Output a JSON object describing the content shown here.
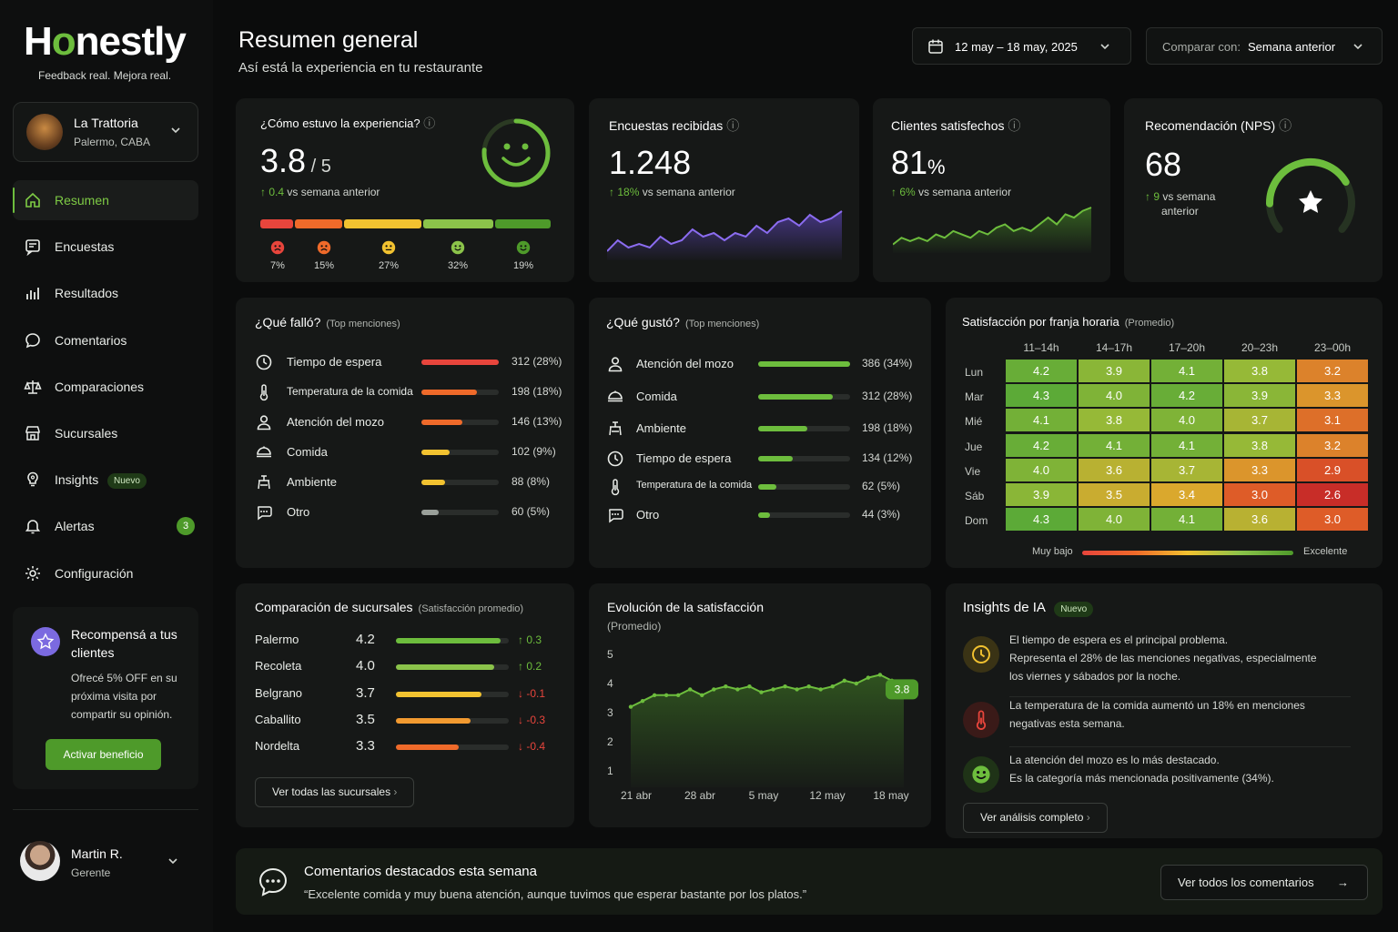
{
  "brand": {
    "name_pre": "H",
    "name_o": "o",
    "name_post": "nestly",
    "tagline": "Feedback real. Mejora real."
  },
  "restaurant": {
    "name": "La Trattoria",
    "location": "Palermo, CABA"
  },
  "nav": [
    {
      "label": "Resumen",
      "icon": "home-icon",
      "active": true
    },
    {
      "label": "Encuestas",
      "icon": "survey-icon"
    },
    {
      "label": "Resultados",
      "icon": "bar-chart-icon"
    },
    {
      "label": "Comentarios",
      "icon": "comment-icon"
    },
    {
      "label": "Comparaciones",
      "icon": "scale-icon"
    },
    {
      "label": "Sucursales",
      "icon": "store-icon"
    },
    {
      "label": "Insights",
      "icon": "bulb-icon",
      "badge": "Nuevo"
    },
    {
      "label": "Alertas",
      "icon": "bell-icon",
      "count": "3"
    },
    {
      "label": "Configuración",
      "icon": "gear-icon"
    }
  ],
  "promo": {
    "title": "Recompensá a tus clientes",
    "desc": "Ofrecé 5% OFF en su próxima visita por compartir su opinión.",
    "button": "Activar beneficio"
  },
  "user": {
    "name": "Martin R.",
    "role": "Gerente"
  },
  "header": {
    "title": "Resumen general",
    "subtitle": "Así está la experiencia en tu restaurante",
    "date_range": "12 may – 18 may, 2025",
    "compare_label": "Comparar con:",
    "compare_value": "Semana anterior"
  },
  "kpi_experience": {
    "title": "¿Cómo estuvo la experiencia?",
    "value": "3.8",
    "scale": "/ 5",
    "delta": "0.4",
    "delta_text": "vs semana anterior",
    "dist": [
      {
        "pct": "7%",
        "color": "#e8453c"
      },
      {
        "pct": "15%",
        "color": "#ef6a2a"
      },
      {
        "pct": "27%",
        "color": "#f2c230"
      },
      {
        "pct": "32%",
        "color": "#8bc34a"
      },
      {
        "pct": "19%",
        "color": "#4e9a2a"
      }
    ]
  },
  "kpi_surveys": {
    "title": "Encuestas recibidas",
    "value": "1.248",
    "delta": "18%",
    "delta_text": "vs semana anterior",
    "spark": [
      4,
      7,
      5,
      6,
      5,
      8,
      6,
      7,
      10,
      8,
      9,
      7,
      9,
      8,
      11,
      9,
      12,
      13,
      11,
      14,
      12,
      13,
      15
    ]
  },
  "kpi_satisfied": {
    "title": "Clientes satisfechos",
    "value": "81",
    "unit": "%",
    "delta": "6%",
    "delta_text": "vs semana anterior",
    "spark": [
      4,
      6,
      5,
      6,
      5,
      7,
      6,
      8,
      7,
      6,
      8,
      7,
      9,
      10,
      8,
      9,
      8,
      10,
      12,
      10,
      13,
      12,
      14,
      15
    ]
  },
  "kpi_nps": {
    "title": "Recomendación (NPS)",
    "value": "68",
    "delta": "9",
    "delta_text_1": "vs semana",
    "delta_text_2": "anterior",
    "level": 0.68
  },
  "failed": {
    "title": "¿Qué falló?",
    "hint": "(Top menciones)",
    "items": [
      {
        "label": "Tiempo de espera",
        "value": "312 (28%)",
        "pct": 1.0,
        "color": "#e8453c",
        "icon": "clock-icon"
      },
      {
        "label": "Temperatura de la comida",
        "value": "198 (18%)",
        "pct": 0.72,
        "color": "#ef6a2a",
        "icon": "thermometer-icon"
      },
      {
        "label": "Atención del mozo",
        "value": "146 (13%)",
        "pct": 0.53,
        "color": "#ef6a2a",
        "icon": "person-icon"
      },
      {
        "label": "Comida",
        "value": "102 (9%)",
        "pct": 0.37,
        "color": "#f2c230",
        "icon": "dish-icon"
      },
      {
        "label": "Ambiente",
        "value": "88 (8%)",
        "pct": 0.31,
        "color": "#f2c230",
        "icon": "chair-icon"
      },
      {
        "label": "Otro",
        "value": "60 (5%)",
        "pct": 0.22,
        "color": "#9aa09a",
        "icon": "chat-dots-icon"
      }
    ]
  },
  "liked": {
    "title": "¿Qué gustó?",
    "hint": "(Top menciones)",
    "items": [
      {
        "label": "Atención del mozo",
        "value": "386 (34%)",
        "pct": 1.0,
        "icon": "person-icon"
      },
      {
        "label": "Comida",
        "value": "312 (28%)",
        "pct": 0.81,
        "icon": "dish-icon"
      },
      {
        "label": "Ambiente",
        "value": "198 (18%)",
        "pct": 0.53,
        "icon": "chair-icon"
      },
      {
        "label": "Tiempo de espera",
        "value": "134 (12%)",
        "pct": 0.38,
        "icon": "clock-icon"
      },
      {
        "label": "Temperatura de la comida",
        "value": "62 (5%)",
        "pct": 0.2,
        "icon": "thermometer-icon"
      },
      {
        "label": "Otro",
        "value": "44 (3%)",
        "pct": 0.13,
        "icon": "chat-dots-icon"
      }
    ]
  },
  "heatmap": {
    "title": "Satisfacción por franja horaria",
    "hint": "(Promedio)",
    "cols": [
      "11–14h",
      "14–17h",
      "17–20h",
      "20–23h",
      "23–00h"
    ],
    "rows": [
      "Lun",
      "Mar",
      "Mié",
      "Jue",
      "Vie",
      "Sáb",
      "Dom"
    ],
    "values": [
      [
        "4.2",
        "3.9",
        "4.1",
        "3.8",
        "3.2"
      ],
      [
        "4.3",
        "4.0",
        "4.2",
        "3.9",
        "3.3"
      ],
      [
        "4.1",
        "3.8",
        "4.0",
        "3.7",
        "3.1"
      ],
      [
        "4.2",
        "4.1",
        "4.1",
        "3.8",
        "3.2"
      ],
      [
        "4.0",
        "3.6",
        "3.7",
        "3.3",
        "2.9"
      ],
      [
        "3.9",
        "3.5",
        "3.4",
        "3.0",
        "2.6"
      ],
      [
        "4.3",
        "4.0",
        "4.1",
        "3.6",
        "3.0"
      ]
    ],
    "legend_low": "Muy bajo",
    "legend_high": "Excelente"
  },
  "branches": {
    "title": "Comparación de sucursales",
    "hint": "(Satisfacción promedio)",
    "items": [
      {
        "name": "Palermo",
        "score": "4.2",
        "delta": "↑ 0.3",
        "up": true,
        "pct": 0.93,
        "color": "#6dbd3d"
      },
      {
        "name": "Recoleta",
        "score": "4.0",
        "delta": "↑ 0.2",
        "up": true,
        "pct": 0.87,
        "color": "#8bc34a"
      },
      {
        "name": "Belgrano",
        "score": "3.7",
        "delta": "↓ -0.1",
        "up": false,
        "pct": 0.76,
        "color": "#f2c230"
      },
      {
        "name": "Caballito",
        "score": "3.5",
        "delta": "↓ -0.3",
        "up": false,
        "pct": 0.66,
        "color": "#f29a30"
      },
      {
        "name": "Nordelta",
        "score": "3.3",
        "delta": "↓ -0.4",
        "up": false,
        "pct": 0.56,
        "color": "#ef6a2a"
      }
    ],
    "button": "Ver todas las sucursales"
  },
  "chart_data": {
    "type": "area",
    "title": "Evolución de la satisfacción",
    "subtitle": "(Promedio)",
    "x_ticks": [
      "21 abr",
      "28 abr",
      "5 may",
      "12 may",
      "18 may"
    ],
    "y_ticks": [
      "5",
      "4",
      "3",
      "2",
      "1"
    ],
    "ylim": [
      1,
      5
    ],
    "values": [
      3.2,
      3.4,
      3.6,
      3.6,
      3.6,
      3.8,
      3.6,
      3.8,
      3.9,
      3.8,
      3.9,
      3.7,
      3.8,
      3.9,
      3.8,
      3.9,
      3.8,
      3.9,
      4.1,
      4.0,
      4.2,
      4.3,
      4.1,
      3.8
    ],
    "last_label": "3.8"
  },
  "insights": {
    "title": "Insights de IA",
    "badge": "Nuevo",
    "items": [
      {
        "icon": "clock-icon",
        "color": "#f2c230",
        "bg": "#3a3315",
        "lines": [
          "El tiempo de espera es el principal problema.",
          "Representa el 28% de las menciones negativas, especialmente",
          "los viernes y sábados por la noche."
        ]
      },
      {
        "icon": "thermometer-icon",
        "color": "#e8453c",
        "bg": "#3a1a18",
        "lines": [
          "La temperatura de la comida aumentó un 18% en menciones",
          "negativas esta semana."
        ]
      },
      {
        "icon": "smile-icon",
        "color": "#6dbd3d",
        "bg": "#1f3317",
        "lines": [
          "La atención del mozo es lo más destacado.",
          "Es la categoría más mencionada positivamente (34%)."
        ]
      }
    ],
    "button": "Ver análisis completo"
  },
  "featured": {
    "title": "Comentarios destacados esta semana",
    "quote": "“Excelente comida y muy buena atención, aunque tuvimos que esperar bastante por los platos.”",
    "button": "Ver todos los comentarios"
  }
}
